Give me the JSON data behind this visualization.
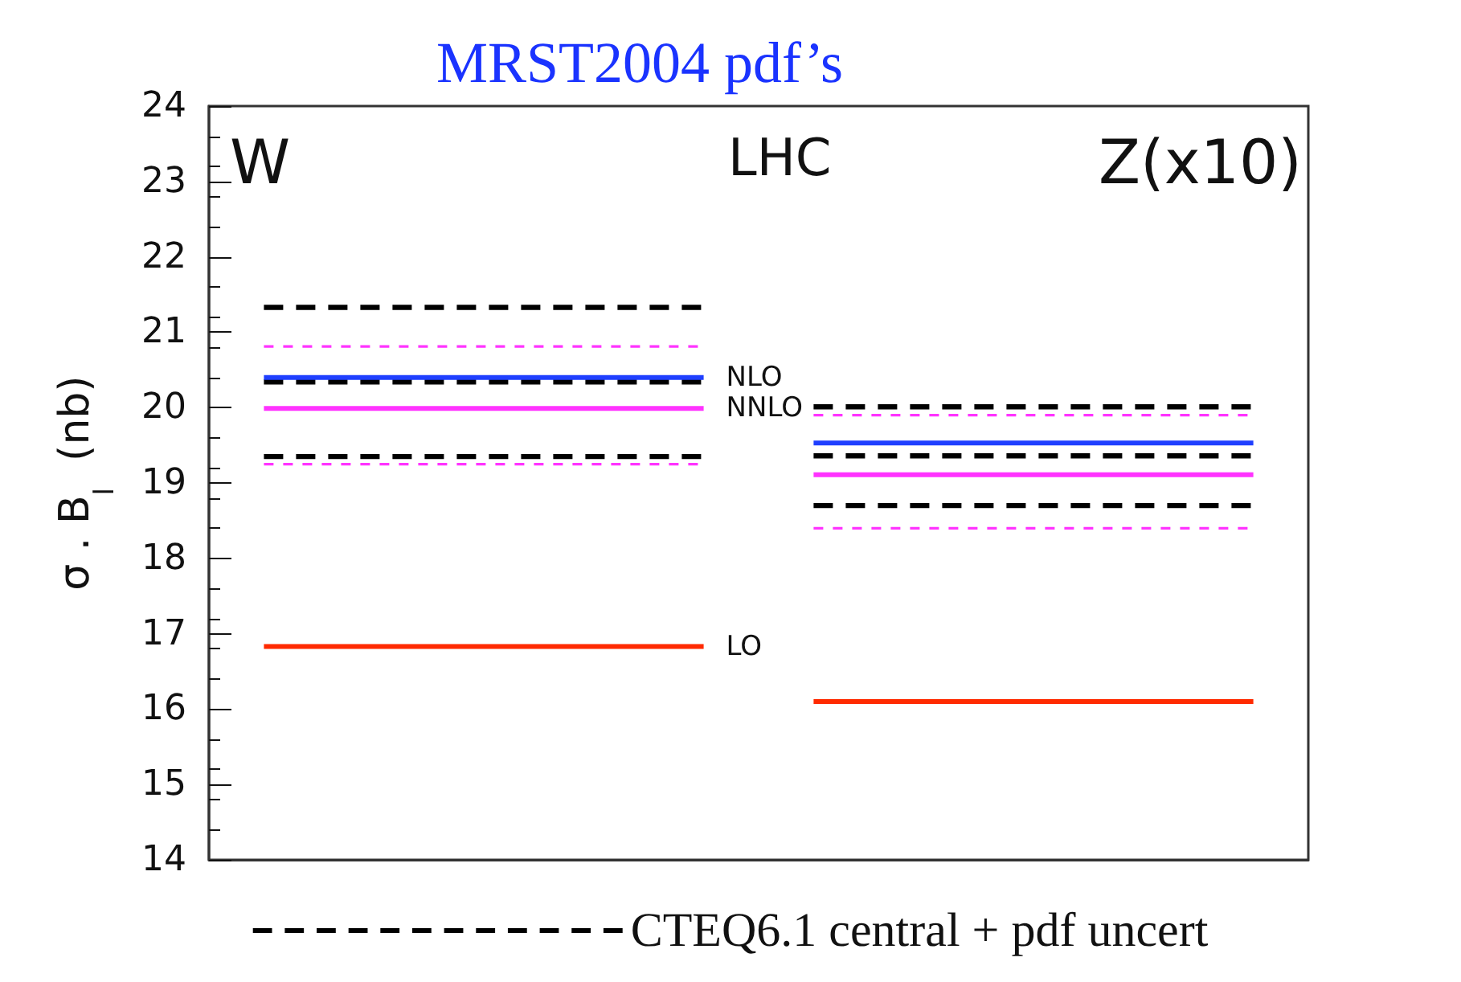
{
  "chart_data": {
    "type": "line",
    "title": "MRST2004 pdf’s",
    "ylabel": "σ . B$_{l}$  (nb)",
    "annotations": [
      "W",
      "LHC",
      "Z(x10)"
    ],
    "categories": [
      null,
      null,
      null,
      null,
      null,
      null,
      null,
      null,
      null,
      null
    ],
    "tick_labels": "y",
    "ylim": [
      14,
      24
    ],
    "yticks": [
      14,
      15,
      16,
      17,
      18,
      19,
      20,
      21,
      22,
      23,
      24
    ],
    "legend": "bottom",
    "marker": "none",
    "grid": false,
    "series": [
      {
        "color": "#000000",
        "line_style": "dashed",
        "values": [
          21.33,
          21.33,
          21.33,
          21.33,
          21.33,
          null,
          null,
          null,
          null,
          null
        ]
      },
      {
        "name": "CTEQ6.1 central + pdf uncert",
        "color": "#000000",
        "line_style": "dashed",
        "values": [
          20.34,
          20.34,
          20.34,
          20.34,
          20.34,
          null,
          null,
          null,
          null,
          null
        ]
      },
      {
        "color": "#000000",
        "line_style": "dashed",
        "values": [
          19.35,
          19.35,
          19.35,
          19.35,
          19.35,
          null,
          null,
          null,
          null,
          null
        ]
      },
      {
        "color": "#ff33ff",
        "line_style": "dotted",
        "values": [
          20.81,
          20.81,
          20.81,
          20.81,
          20.81,
          null,
          null,
          null,
          null,
          null
        ]
      },
      {
        "color": "#ff33ff",
        "line_style": "dotted",
        "values": [
          19.25,
          19.25,
          19.25,
          19.25,
          19.25,
          null,
          null,
          null,
          null,
          null
        ]
      },
      {
        "name": "NLO",
        "color": "#1f3fff",
        "line_style": "solid",
        "values": [
          20.4,
          20.4,
          20.4,
          20.4,
          20.4,
          null,
          null,
          null,
          null,
          null
        ]
      },
      {
        "name": "NNLO",
        "color": "#ff33ff",
        "line_style": "solid",
        "values": [
          19.99,
          19.99,
          19.99,
          19.99,
          19.99,
          null,
          null,
          null,
          null,
          null
        ]
      },
      {
        "name": "LO",
        "color": "#ff2a00",
        "line_style": "solid",
        "values": [
          16.83,
          16.83,
          16.83,
          16.83,
          16.83,
          null,
          null,
          null,
          null,
          null
        ]
      },
      {
        "color": "#000000",
        "line_style": "dashed",
        "values": [
          null,
          null,
          null,
          null,
          null,
          20.01,
          20.01,
          20.01,
          20.01,
          20.01
        ]
      },
      {
        "color": "#000000",
        "line_style": "dashed",
        "values": [
          null,
          null,
          null,
          null,
          null,
          19.36,
          19.36,
          19.36,
          19.36,
          19.36
        ]
      },
      {
        "color": "#000000",
        "line_style": "dashed",
        "values": [
          null,
          null,
          null,
          null,
          null,
          18.7,
          18.7,
          18.7,
          18.7,
          18.7
        ]
      },
      {
        "color": "#ff33ff",
        "line_style": "dotted",
        "values": [
          null,
          null,
          null,
          null,
          null,
          19.9,
          19.9,
          19.9,
          19.9,
          19.9
        ]
      },
      {
        "color": "#ff33ff",
        "line_style": "dotted",
        "values": [
          null,
          null,
          null,
          null,
          null,
          18.4,
          18.4,
          18.4,
          18.4,
          18.4
        ]
      },
      {
        "color": "#1f3fff",
        "line_style": "solid",
        "values": [
          null,
          null,
          null,
          null,
          null,
          19.53,
          19.53,
          19.53,
          19.53,
          19.53
        ]
      },
      {
        "color": "#ff33ff",
        "line_style": "solid",
        "values": [
          null,
          null,
          null,
          null,
          null,
          19.11,
          19.11,
          19.11,
          19.11,
          19.11
        ]
      },
      {
        "color": "#ff2a00",
        "line_style": "solid",
        "values": [
          null,
          null,
          null,
          null,
          null,
          16.1,
          16.1,
          16.1,
          16.1,
          16.1
        ]
      }
    ]
  }
}
